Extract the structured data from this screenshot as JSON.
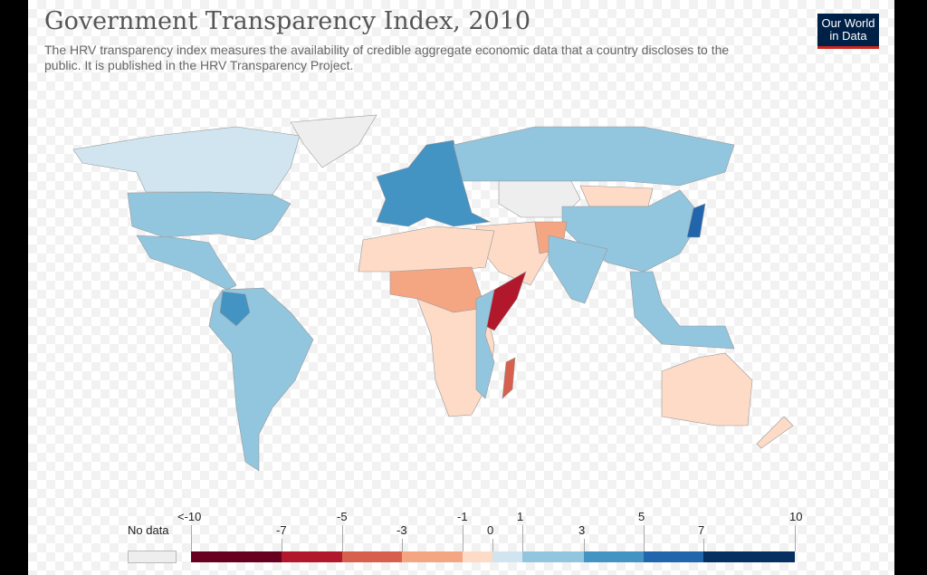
{
  "title": "Government Transparency Index, 2010",
  "subtitle": "The HRV transparency index measures the availability of credible aggregate economic data that a country discloses to the public. It is published in the HRV Transparency Project.",
  "logo": {
    "line1": "Our World",
    "line2": "in Data"
  },
  "legend": {
    "no_data_label": "No data",
    "no_data_color": "#eeeeee",
    "upper_ticks": [
      "<-10",
      "-5",
      "-1",
      "1",
      "5",
      "10"
    ],
    "lower_ticks": [
      "-7",
      "-3",
      "0",
      "3",
      "7"
    ],
    "bins": [
      {
        "from": -10,
        "to": -7,
        "color": "#67001f"
      },
      {
        "from": -7,
        "to": -5,
        "color": "#b2182b"
      },
      {
        "from": -5,
        "to": -3,
        "color": "#d6604d"
      },
      {
        "from": -3,
        "to": -1,
        "color": "#f4a582"
      },
      {
        "from": -1,
        "to": 0,
        "color": "#fddbc7"
      },
      {
        "from": 0,
        "to": 1,
        "color": "#d1e5f0"
      },
      {
        "from": 1,
        "to": 3,
        "color": "#92c5de"
      },
      {
        "from": 3,
        "to": 5,
        "color": "#4393c3"
      },
      {
        "from": 5,
        "to": 7,
        "color": "#2166ac"
      },
      {
        "from": 7,
        "to": 10,
        "color": "#053061"
      }
    ]
  },
  "regions": [
    {
      "name": "Canada",
      "value": 0.5
    },
    {
      "name": "Greenland",
      "value": null
    },
    {
      "name": "United States",
      "value": 2
    },
    {
      "name": "Mexico & Central America",
      "value": 2
    },
    {
      "name": "South America",
      "value": 2
    },
    {
      "name": "Colombia",
      "value": 4
    },
    {
      "name": "Europe",
      "value": 4
    },
    {
      "name": "Russia",
      "value": 2
    },
    {
      "name": "Kazakhstan",
      "value": null
    },
    {
      "name": "Mongolia",
      "value": -0.5
    },
    {
      "name": "China",
      "value": 2
    },
    {
      "name": "Middle East",
      "value": -0.5
    },
    {
      "name": "Afghanistan",
      "value": -2
    },
    {
      "name": "India",
      "value": 2
    },
    {
      "name": "North Africa",
      "value": -0.5
    },
    {
      "name": "Sahel",
      "value": -2
    },
    {
      "name": "Central & Southern Africa",
      "value": -0.5
    },
    {
      "name": "Somalia",
      "value": -6
    },
    {
      "name": "East Africa",
      "value": 2
    },
    {
      "name": "Madagascar",
      "value": -4
    },
    {
      "name": "Japan",
      "value": 6
    },
    {
      "name": "Southeast Asia",
      "value": 2
    },
    {
      "name": "Australia",
      "value": -0.5
    },
    {
      "name": "New Zealand",
      "value": -0.5
    }
  ]
}
